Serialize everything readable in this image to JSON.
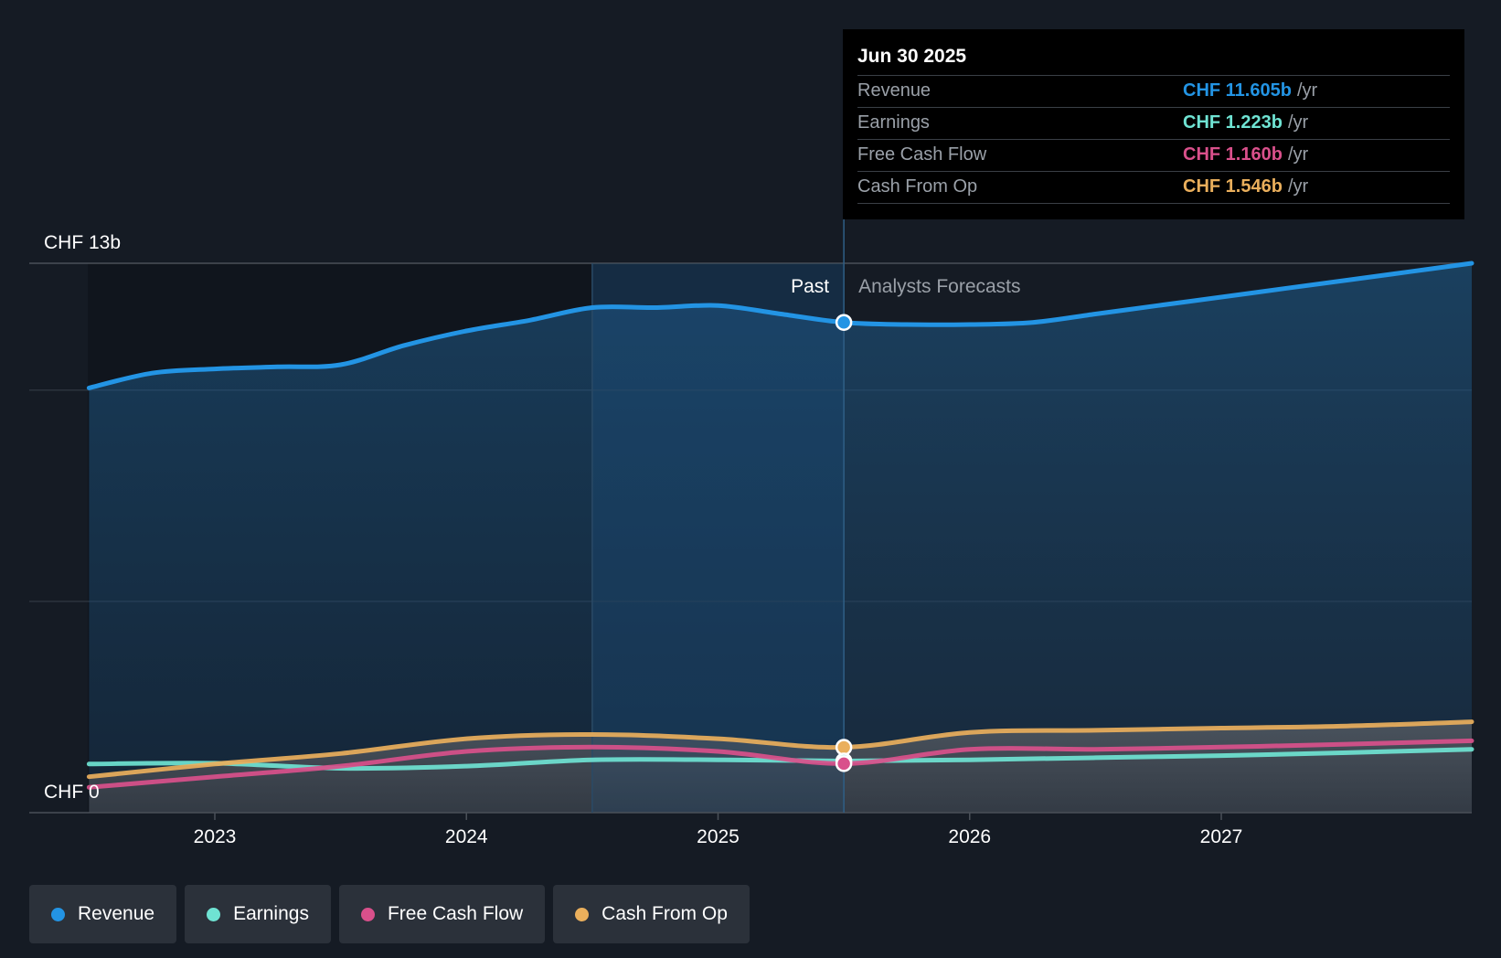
{
  "chart_data": {
    "type": "line",
    "title": "",
    "currency": "CHF",
    "y_top_label": "CHF 13b",
    "y_bottom_label": "CHF 0",
    "ylim": [
      0,
      13
    ],
    "x_ticks": [
      "2023",
      "2024",
      "2025",
      "2026",
      "2027"
    ],
    "x_tick_values": [
      2023.0,
      2024.0,
      2025.0,
      2026.0,
      2027.0
    ],
    "xlim": [
      2022.5,
      2028.0
    ],
    "past_label": "Past",
    "forecast_label": "Analysts Forecasts",
    "past_end": 2025.5,
    "highlight_start": 2024.5,
    "series": [
      {
        "name": "Revenue",
        "color": "#2394e4",
        "area": true,
        "x": [
          2022.5,
          2022.75,
          2023.0,
          2023.25,
          2023.5,
          2023.75,
          2024.0,
          2024.25,
          2024.5,
          2024.75,
          2025.0,
          2025.25,
          2025.5,
          2025.75,
          2026.0,
          2026.25,
          2026.5,
          2026.75,
          2027.0,
          2027.25,
          2027.5,
          2027.75,
          2028.0
        ],
        "values": [
          10.05,
          10.4,
          10.5,
          10.55,
          10.6,
          11.05,
          11.4,
          11.65,
          11.95,
          11.95,
          12.0,
          11.8,
          11.6,
          11.55,
          11.55,
          11.6,
          11.8,
          12.0,
          12.2,
          12.4,
          12.6,
          12.8,
          13.0
        ]
      },
      {
        "name": "Earnings",
        "color": "#6fe3d3",
        "area": false,
        "x": [
          2022.5,
          2023.0,
          2023.5,
          2024.0,
          2024.5,
          2025.0,
          2025.5,
          2026.0,
          2026.5,
          2027.0,
          2027.5,
          2028.0
        ],
        "values": [
          1.15,
          1.17,
          1.05,
          1.1,
          1.25,
          1.25,
          1.223,
          1.25,
          1.3,
          1.35,
          1.42,
          1.5
        ]
      },
      {
        "name": "Free Cash Flow",
        "color": "#d9508b",
        "area": false,
        "x": [
          2022.5,
          2023.0,
          2023.5,
          2024.0,
          2024.5,
          2025.0,
          2025.5,
          2026.0,
          2026.5,
          2027.0,
          2027.5,
          2028.0
        ],
        "values": [
          0.6,
          0.85,
          1.1,
          1.45,
          1.55,
          1.45,
          1.16,
          1.5,
          1.5,
          1.55,
          1.62,
          1.7
        ]
      },
      {
        "name": "Cash From Op",
        "color": "#eaaf5c",
        "area": false,
        "x": [
          2022.5,
          2023.0,
          2023.5,
          2024.0,
          2024.5,
          2025.0,
          2025.5,
          2026.0,
          2026.5,
          2027.0,
          2027.5,
          2028.0
        ],
        "values": [
          0.85,
          1.15,
          1.4,
          1.75,
          1.85,
          1.75,
          1.546,
          1.9,
          1.95,
          2.0,
          2.05,
          2.15
        ]
      }
    ]
  },
  "tooltip": {
    "date": "Jun 30 2025",
    "rows": [
      {
        "label": "Revenue",
        "value": "CHF 11.605b",
        "unit": "/yr",
        "color": "#2394e4"
      },
      {
        "label": "Earnings",
        "value": "CHF 1.223b",
        "unit": "/yr",
        "color": "#6fe3d3"
      },
      {
        "label": "Free Cash Flow",
        "value": "CHF 1.160b",
        "unit": "/yr",
        "color": "#d9508b"
      },
      {
        "label": "Cash From Op",
        "value": "CHF 1.546b",
        "unit": "/yr",
        "color": "#eaaf5c"
      }
    ]
  },
  "legend": [
    {
      "label": "Revenue",
      "color": "#2394e4"
    },
    {
      "label": "Earnings",
      "color": "#6fe3d3"
    },
    {
      "label": "Free Cash Flow",
      "color": "#d9508b"
    },
    {
      "label": "Cash From Op",
      "color": "#eaaf5c"
    }
  ]
}
